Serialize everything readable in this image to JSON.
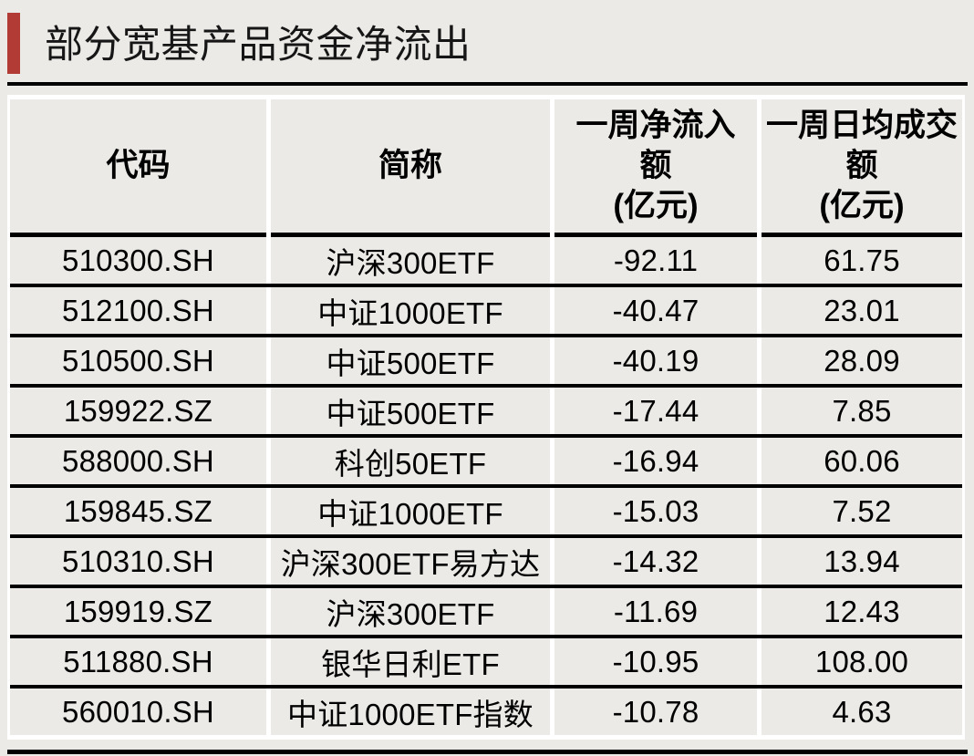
{
  "title": "部分宽基产品资金净流出",
  "colors": {
    "page_background": "#ECEAE6",
    "accent_bar_red": "#B23C35",
    "table_rule_black": "#000000",
    "cell_gutter_white": "#FFFFFF",
    "text_black": "#000000"
  },
  "chart_data": {
    "type": "table",
    "title": "部分宽基产品资金净流出",
    "columns": [
      {
        "id": "code",
        "label": "代码",
        "display": "代码"
      },
      {
        "id": "name",
        "label": "简称",
        "display": "简称"
      },
      {
        "id": "net_inflow",
        "label": "一周净流入额(亿元)",
        "display": "一周净流入\n额\n(亿元)"
      },
      {
        "id": "avg_turnover",
        "label": "一周日均成交额(亿元)",
        "display": "一周日均成交\n额\n(亿元)"
      }
    ],
    "rows": [
      {
        "code": "510300.SH",
        "name": "沪深300ETF",
        "net_inflow": "-92.11",
        "avg_turnover": "61.75"
      },
      {
        "code": "512100.SH",
        "name": "中证1000ETF",
        "net_inflow": "-40.47",
        "avg_turnover": "23.01"
      },
      {
        "code": "510500.SH",
        "name": "中证500ETF",
        "net_inflow": "-40.19",
        "avg_turnover": "28.09"
      },
      {
        "code": "159922.SZ",
        "name": "中证500ETF",
        "net_inflow": "-17.44",
        "avg_turnover": "7.85"
      },
      {
        "code": "588000.SH",
        "name": "科创50ETF",
        "net_inflow": "-16.94",
        "avg_turnover": "60.06"
      },
      {
        "code": "159845.SZ",
        "name": "中证1000ETF",
        "net_inflow": "-15.03",
        "avg_turnover": "7.52"
      },
      {
        "code": "510310.SH",
        "name": "沪深300ETF易方达",
        "net_inflow": "-14.32",
        "avg_turnover": "13.94"
      },
      {
        "code": "159919.SZ",
        "name": "沪深300ETF",
        "net_inflow": "-11.69",
        "avg_turnover": "12.43"
      },
      {
        "code": "511880.SH",
        "name": "银华日利ETF",
        "net_inflow": "-10.95",
        "avg_turnover": "108.00"
      },
      {
        "code": "560010.SH",
        "name": "中证1000ETF指数",
        "net_inflow": "-10.78",
        "avg_turnover": "4.63"
      }
    ]
  }
}
